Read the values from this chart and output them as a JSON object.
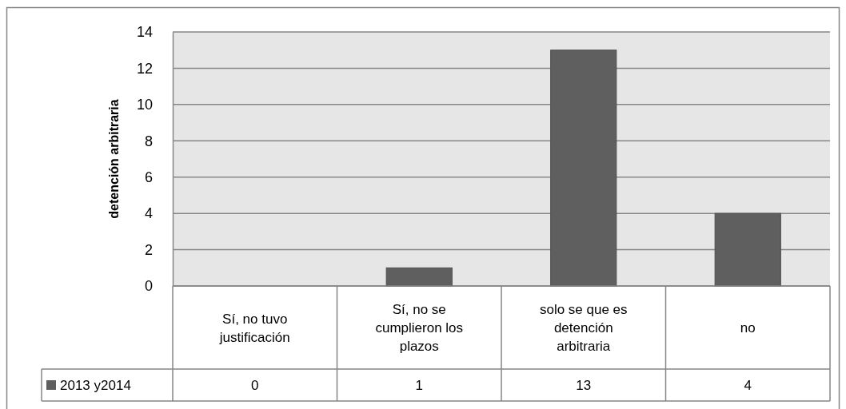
{
  "chart_data": {
    "type": "bar",
    "ylabel": "detención arbitraria",
    "categories": [
      "Sí, no tuvo justificación",
      "Sí, no se cumplieron los plazos",
      "solo se que es detención arbitraria",
      "no"
    ],
    "series": [
      {
        "name": "2013 y2014",
        "color": "#5f5f5f",
        "values": [
          0,
          1,
          13,
          4
        ]
      }
    ],
    "ylim": [
      0,
      14
    ],
    "yticks": [
      0,
      2,
      4,
      6,
      8,
      10,
      12,
      14
    ],
    "grid": "y",
    "legend": "bottom left",
    "data_labels": true
  }
}
